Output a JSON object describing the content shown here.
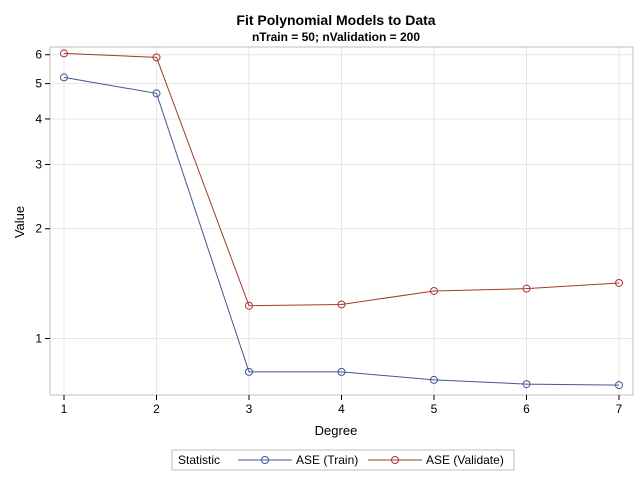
{
  "chart_data": {
    "type": "line",
    "title": "Fit Polynomial Models to Data",
    "subtitle": "nTrain = 50; nValidation = 200",
    "xlabel": "Degree",
    "ylabel": "Value",
    "x": [
      1,
      2,
      3,
      4,
      5,
      6,
      7
    ],
    "x_ticks": [
      "1",
      "2",
      "3",
      "4",
      "5",
      "6",
      "7"
    ],
    "y_scale": "log",
    "y_ticks": [
      1,
      2,
      3,
      4,
      5,
      6
    ],
    "y_tick_labels": [
      "1",
      "2",
      "3",
      "4",
      "5",
      "6"
    ],
    "grid": true,
    "legend_position": "bottom",
    "legend_title": "Statistic",
    "series": [
      {
        "name": "ASE (Train)",
        "color": "#445694",
        "marker": "circle",
        "values": [
          5.2,
          4.7,
          0.81,
          0.81,
          0.77,
          0.75,
          0.745
        ]
      },
      {
        "name": "ASE (Validate)",
        "color": "#A23A2E",
        "marker": "circle",
        "values": [
          6.05,
          5.9,
          1.23,
          1.24,
          1.35,
          1.37,
          1.42
        ]
      }
    ]
  }
}
